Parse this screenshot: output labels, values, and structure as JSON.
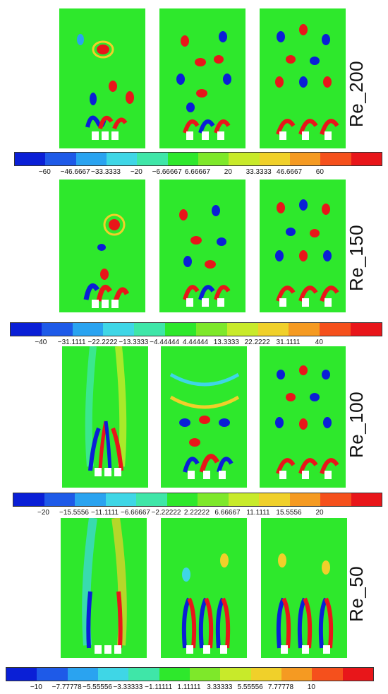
{
  "colormap": [
    "#0a1fd6",
    "#1e5ae8",
    "#2aa3f0",
    "#3fd6e6",
    "#3fe6a8",
    "#2ee82c",
    "#7ee82a",
    "#c8ea2a",
    "#f0d02a",
    "#f59a22",
    "#f5501c",
    "#e8161a"
  ],
  "rows": [
    {
      "label": "Re_200",
      "ticks": [
        "−60",
        "−46.6667",
        "−33.3333",
        "−20",
        "−6.66667",
        "6.66667",
        "20",
        "33.3333",
        "46.6667",
        "60"
      ]
    },
    {
      "label": "Re_150",
      "ticks": [
        "−40",
        "−31.1111",
        "−22.2222",
        "−13.3333",
        "−4.44444",
        "4.44444",
        "13.3333",
        "22.2222",
        "31.1111",
        "40"
      ]
    },
    {
      "label": "Re_100",
      "ticks": [
        "−20",
        "−15.5556",
        "−11.1111",
        "−6.66667",
        "−2.22222",
        "2.22222",
        "6.66667",
        "11.1111",
        "15.5556",
        "20"
      ]
    },
    {
      "label": "Re_50",
      "ticks": [
        "−10",
        "−7.77778",
        "−5.55556",
        "−3.33333",
        "−1.11111",
        "1.11111",
        "3.33333",
        "5.55556",
        "7.77778",
        "10"
      ]
    }
  ]
}
